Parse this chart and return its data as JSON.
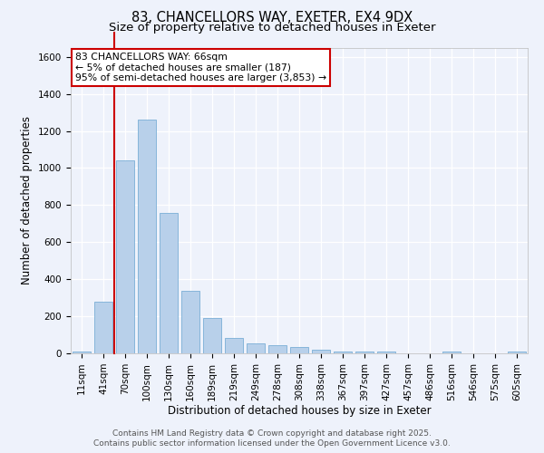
{
  "title1": "83, CHANCELLORS WAY, EXETER, EX4 9DX",
  "title2": "Size of property relative to detached houses in Exeter",
  "xlabel": "Distribution of detached houses by size in Exeter",
  "ylabel": "Number of detached properties",
  "categories": [
    "11sqm",
    "41sqm",
    "70sqm",
    "100sqm",
    "130sqm",
    "160sqm",
    "189sqm",
    "219sqm",
    "249sqm",
    "278sqm",
    "308sqm",
    "338sqm",
    "367sqm",
    "397sqm",
    "427sqm",
    "457sqm",
    "486sqm",
    "516sqm",
    "546sqm",
    "575sqm",
    "605sqm"
  ],
  "values": [
    10,
    280,
    1040,
    1260,
    760,
    335,
    190,
    85,
    55,
    45,
    35,
    20,
    10,
    10,
    8,
    0,
    0,
    8,
    0,
    0,
    8
  ],
  "bar_color": "#b8d0ea",
  "bar_edge_color": "#7aaed6",
  "annotation_text": "83 CHANCELLORS WAY: 66sqm\n← 5% of detached houses are smaller (187)\n95% of semi-detached houses are larger (3,853) →",
  "annotation_box_color": "#ffffff",
  "annotation_box_edge": "#cc0000",
  "red_line_color": "#cc0000",
  "red_line_x": 1.5,
  "ylim": [
    0,
    1650
  ],
  "yticks": [
    0,
    200,
    400,
    600,
    800,
    1000,
    1200,
    1400,
    1600
  ],
  "footer1": "Contains HM Land Registry data © Crown copyright and database right 2025.",
  "footer2": "Contains public sector information licensed under the Open Government Licence v3.0.",
  "background_color": "#eef2fb",
  "grid_color": "#ffffff",
  "title_fontsize": 10.5,
  "subtitle_fontsize": 9.5,
  "axis_label_fontsize": 8.5,
  "tick_fontsize": 7.5,
  "annotation_fontsize": 7.8,
  "footer_fontsize": 6.5
}
